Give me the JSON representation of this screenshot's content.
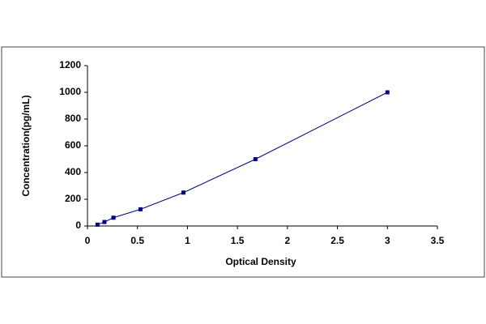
{
  "chart_data": {
    "type": "line",
    "x_label": "Optical Density",
    "y_label": "Concentration(pg/mL)",
    "series": [
      {
        "color": "#000080",
        "x": [
          0.1,
          0.17,
          0.26,
          0.53,
          0.96,
          1.68,
          3.0
        ],
        "values": [
          10,
          30,
          62,
          125,
          250,
          500,
          1000
        ]
      }
    ],
    "xlim": [
      0,
      3.5
    ],
    "xticks": [
      0,
      0.5,
      1,
      1.5,
      2,
      2.5,
      3,
      3.5
    ],
    "ylim": [
      0,
      1200
    ],
    "yticks": [
      0,
      200,
      400,
      600,
      800,
      1000,
      1200
    ],
    "grid": false
  }
}
